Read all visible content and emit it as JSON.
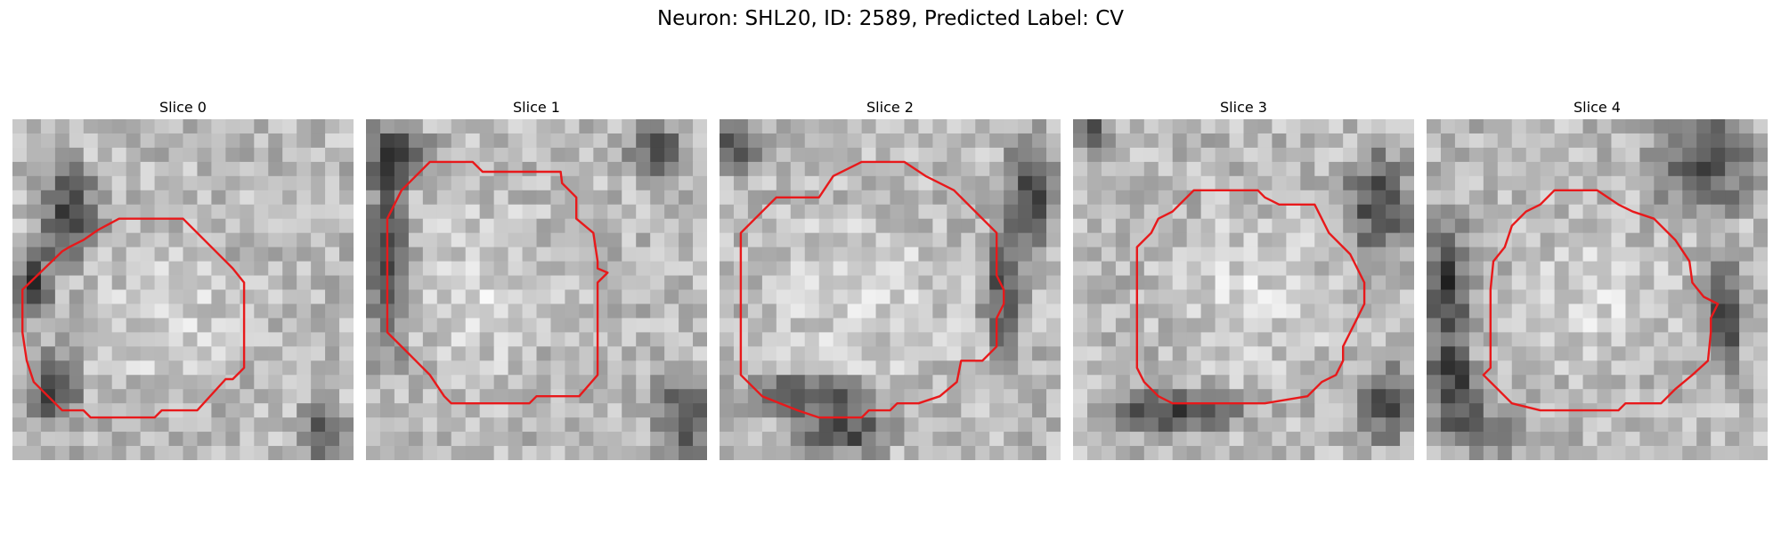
{
  "figure": {
    "title": "Neuron: SHL20, ID: 2589, Predicted Label: CV",
    "contour_color": "#e8191b"
  },
  "panels": [
    {
      "title": "Slice 0"
    },
    {
      "title": "Slice 1"
    },
    {
      "title": "Slice 2"
    },
    {
      "title": "Slice 3"
    },
    {
      "title": "Slice 4"
    }
  ]
}
